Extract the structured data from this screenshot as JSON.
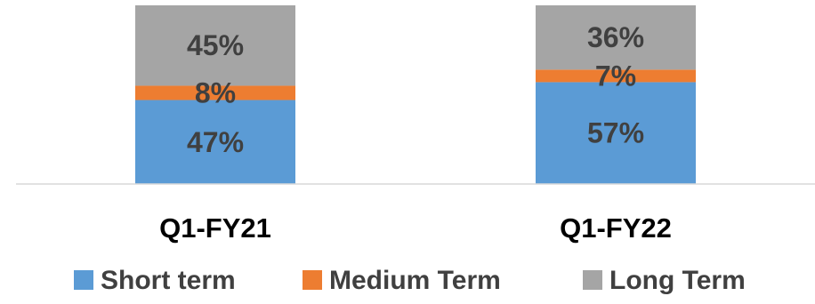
{
  "chart_data": {
    "type": "bar",
    "stacked": true,
    "categories": [
      "Q1-FY21",
      "Q1-FY22"
    ],
    "series": [
      {
        "name": "Short term",
        "values": [
          47,
          57
        ],
        "labels": [
          "47%",
          "57%"
        ],
        "color": "#5b9bd5"
      },
      {
        "name": "Medium Term",
        "values": [
          8,
          7
        ],
        "labels": [
          "8%",
          "7%"
        ],
        "color": "#ed7d31"
      },
      {
        "name": "Long Term",
        "values": [
          45,
          36
        ],
        "labels": [
          "45%",
          "36%"
        ],
        "color": "#a5a5a5"
      }
    ],
    "ylim": [
      0,
      100
    ],
    "grid": false,
    "legend_position": "bottom",
    "axis_color": "#d9d9d9"
  }
}
